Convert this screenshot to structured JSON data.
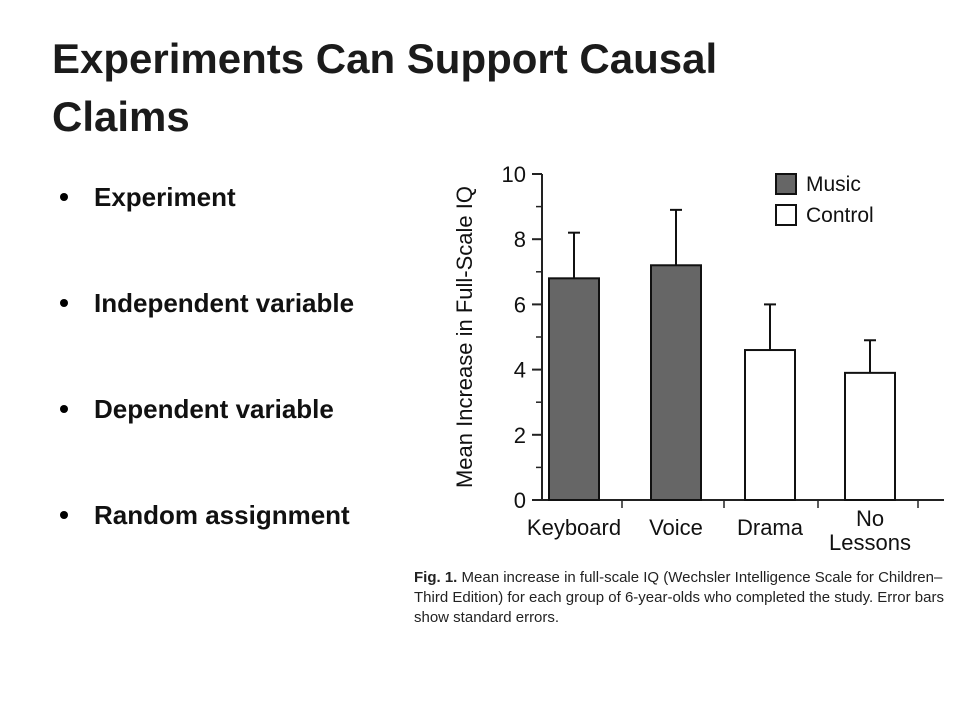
{
  "slide": {
    "title": "Experiments Can Support Causal Claims",
    "bullets": [
      "Experiment",
      "Independent variable",
      "Dependent variable",
      "Random assignment"
    ]
  },
  "chart_data": {
    "type": "bar",
    "categories": [
      "Keyboard",
      "Voice",
      "Drama",
      "No Lessons"
    ],
    "values": [
      6.8,
      7.2,
      4.6,
      3.9
    ],
    "error_bars": [
      1.4,
      1.7,
      1.4,
      1.0
    ],
    "groups": [
      "Music",
      "Music",
      "Control",
      "Control"
    ],
    "series": [
      {
        "name": "Music",
        "color": "#666666"
      },
      {
        "name": "Control",
        "color": "#ffffff"
      }
    ],
    "ylabel": "Mean Increase in Full-Scale IQ",
    "yticks": [
      0,
      2,
      4,
      6,
      8,
      10
    ],
    "ylim": [
      0,
      10
    ],
    "legend_position": "top-right",
    "grid": false
  },
  "caption": {
    "prefix": "Fig. 1.",
    "text": " Mean increase in full-scale IQ (Wechsler Intelligence Scale for Children–Third Edition) for each group of 6-year-olds who completed the study. Error bars show standard errors."
  }
}
